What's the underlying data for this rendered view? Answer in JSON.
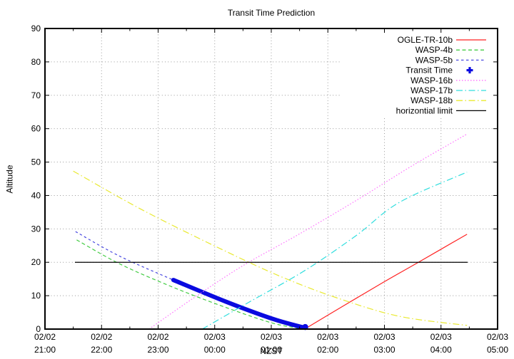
{
  "chart_data": {
    "type": "line",
    "title": "Transit Time Prediction",
    "xlabel": "NZST",
    "ylabel": "Altitude",
    "grid": true,
    "legend_position": "top-right",
    "colors": {
      "background": "#ffffff",
      "frame": "#000000",
      "grid": "#9a9a9a",
      "text": "#000000"
    },
    "x_axis": {
      "unit": "hours after 02/02 21:00 NZST",
      "min": 0,
      "max": 8,
      "minor_tick_step": 0.5,
      "ticks": [
        {
          "h": 0,
          "date": "02/02",
          "time": "21:00"
        },
        {
          "h": 1,
          "date": "02/02",
          "time": "22:00"
        },
        {
          "h": 2,
          "date": "02/02",
          "time": "23:00"
        },
        {
          "h": 3,
          "date": "02/03",
          "time": "00:00"
        },
        {
          "h": 4,
          "date": "02/03",
          "time": "01:00"
        },
        {
          "h": 5,
          "date": "02/03",
          "time": "02:00"
        },
        {
          "h": 6,
          "date": "02/03",
          "time": "03:00"
        },
        {
          "h": 7,
          "date": "02/03",
          "time": "04:00"
        },
        {
          "h": 8,
          "date": "02/03",
          "time": "05:00"
        }
      ]
    },
    "y_axis": {
      "min": 0,
      "max": 90,
      "tick_step": 10,
      "ticks": [
        0,
        10,
        20,
        30,
        40,
        50,
        60,
        70,
        80,
        90
      ]
    },
    "series": [
      {
        "name": "OGLE-TR-10b",
        "color": "#ff2222",
        "style": "solid",
        "width": 1,
        "points": [
          [
            4.59,
            0
          ],
          [
            5.3,
            7.2
          ],
          [
            6.0,
            14.2
          ],
          [
            6.6,
            20.0
          ],
          [
            7.46,
            28.4
          ]
        ]
      },
      {
        "name": "WASP-4b",
        "color": "#44cc44",
        "style": "dashed",
        "width": 1,
        "points": [
          [
            0.56,
            26.7
          ],
          [
            1.3,
            19.7
          ],
          [
            2.11,
            13.6
          ],
          [
            3.03,
            7.5
          ],
          [
            4.0,
            1.9
          ],
          [
            4.55,
            0.1
          ]
        ]
      },
      {
        "name": "WASP-5b",
        "color": "#4848e0",
        "style": "dashed2",
        "width": 1,
        "points": [
          [
            0.54,
            29.2
          ],
          [
            1.3,
            22.0
          ],
          [
            2.27,
            14.7
          ],
          [
            3.2,
            8.2
          ],
          [
            4.0,
            3.2
          ],
          [
            4.63,
            0.2
          ]
        ]
      },
      {
        "name": "Transit Time",
        "color": "#0a0ae0",
        "style": "markers",
        "marker": "bold-plus",
        "width": 6,
        "points": [
          [
            2.27,
            14.7
          ],
          [
            3.2,
            8.2
          ],
          [
            4.0,
            3.2
          ],
          [
            4.45,
            1.0
          ],
          [
            4.6,
            0.4
          ]
        ]
      },
      {
        "name": "WASP-16b",
        "color": "#ff70ff",
        "style": "dotted",
        "width": 1,
        "points": [
          [
            1.84,
            0
          ],
          [
            2.6,
            9.0
          ],
          [
            3.5,
            19.0
          ],
          [
            4.5,
            28.5
          ],
          [
            5.5,
            38.5
          ],
          [
            6.5,
            49.0
          ],
          [
            7.46,
            58.4
          ]
        ]
      },
      {
        "name": "WASP-17b",
        "color": "#30dede",
        "style": "dashdot",
        "width": 1,
        "points": [
          [
            2.78,
            0
          ],
          [
            3.6,
            8.0
          ],
          [
            4.59,
            17.5
          ],
          [
            5.5,
            28.0
          ],
          [
            6.27,
            38.0
          ],
          [
            7.46,
            47.0
          ]
        ]
      },
      {
        "name": "WASP-18b",
        "color": "#e9e930",
        "style": "dashdot",
        "width": 1,
        "points": [
          [
            0.5,
            47.3
          ],
          [
            1.73,
            35.6
          ],
          [
            3.12,
            23.9
          ],
          [
            4.2,
            15.5
          ],
          [
            5.22,
            9.0
          ],
          [
            6.27,
            3.8
          ],
          [
            7.46,
            1.1
          ]
        ]
      },
      {
        "name": "horizontial limit",
        "color": "#000000",
        "style": "solid",
        "width": 1,
        "points": [
          [
            0.53,
            20
          ],
          [
            7.47,
            20
          ]
        ]
      }
    ]
  }
}
